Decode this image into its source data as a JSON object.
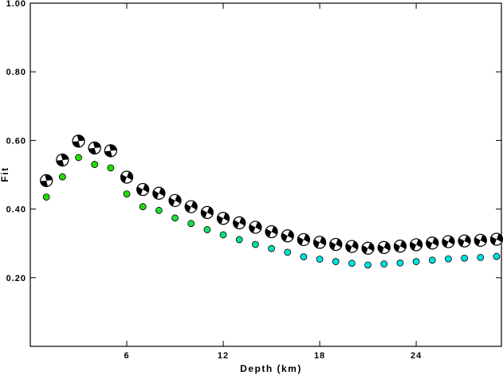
{
  "chart_data": {
    "type": "scatter",
    "xlabel": "Depth (km)",
    "ylabel": "Fit",
    "xlim": [
      0,
      29.3
    ],
    "ylim": [
      0,
      1.0
    ],
    "x_ticks": [
      6,
      12,
      18,
      24
    ],
    "x_tick_labels": [
      "6",
      "12",
      "18",
      "24"
    ],
    "y_ticks": [
      0.2,
      0.4,
      0.6,
      0.8,
      1.0
    ],
    "y_tick_labels": [
      "0.20",
      "0.40",
      "0.60",
      "0.80",
      "1.00"
    ],
    "grid": false,
    "series": [
      {
        "marker": "focal-mechanism",
        "x": [
          1,
          2,
          3,
          4,
          5,
          6,
          7,
          8,
          9,
          10,
          11,
          12,
          13,
          14,
          15,
          16,
          17,
          18,
          19,
          20,
          21,
          22,
          23,
          24,
          25,
          26,
          27,
          28,
          29
        ],
        "y": [
          0.483,
          0.543,
          0.598,
          0.578,
          0.57,
          0.493,
          0.457,
          0.446,
          0.425,
          0.407,
          0.39,
          0.373,
          0.36,
          0.347,
          0.334,
          0.322,
          0.311,
          0.303,
          0.297,
          0.291,
          0.286,
          0.288,
          0.292,
          0.296,
          0.301,
          0.305,
          0.307,
          0.309,
          0.312
        ]
      },
      {
        "marker": "circle",
        "x": [
          1,
          2,
          3,
          4,
          5,
          6,
          7,
          8,
          9,
          10,
          11,
          12,
          13,
          14,
          15,
          16,
          17,
          18,
          19,
          20,
          21,
          22,
          23,
          24,
          25,
          26,
          27,
          28,
          29
        ],
        "y": [
          0.435,
          0.494,
          0.55,
          0.53,
          0.52,
          0.444,
          0.407,
          0.396,
          0.374,
          0.358,
          0.34,
          0.325,
          0.311,
          0.297,
          0.285,
          0.274,
          0.261,
          0.254,
          0.247,
          0.242,
          0.237,
          0.24,
          0.243,
          0.247,
          0.251,
          0.255,
          0.257,
          0.259,
          0.262
        ]
      }
    ]
  },
  "colors": {
    "frame": "#000000",
    "mechanism_fill": "#000000",
    "mechanism_light": "#ffffff",
    "circle_start": "#22dd00",
    "circle_end": "#00e0e0"
  }
}
